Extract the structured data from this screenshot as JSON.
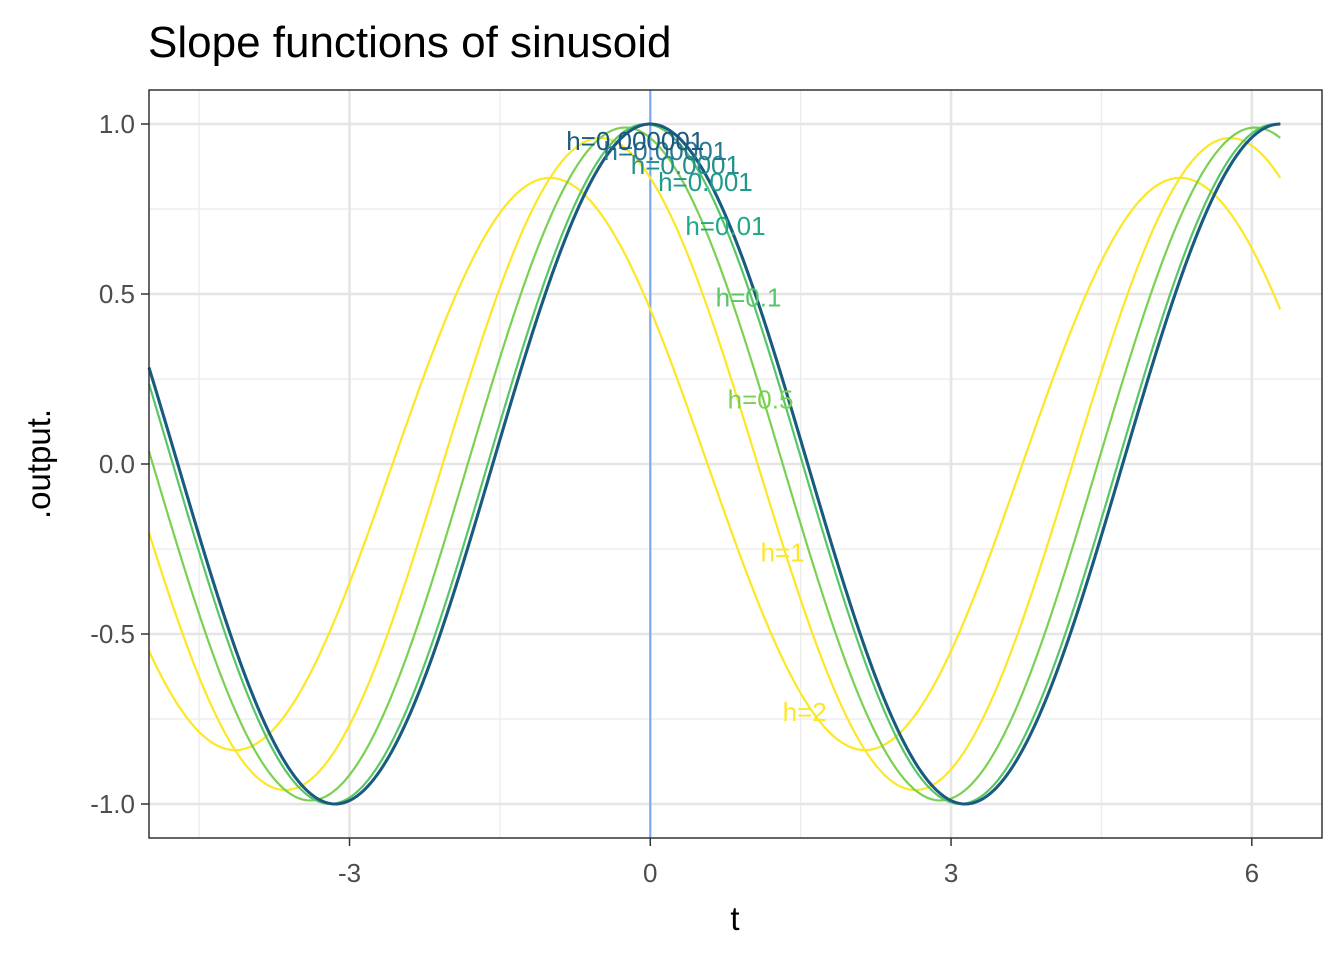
{
  "chart_data": {
    "type": "line",
    "title": "Slope functions of sinusoid",
    "xlabel": "t",
    "ylabel": ".output.",
    "xlim": [
      -5.0,
      6.7
    ],
    "ylim": [
      -1.1,
      1.1
    ],
    "x_ticks": [
      -3,
      0,
      3,
      6
    ],
    "x_tick_labels": [
      "-3",
      "0",
      "3",
      "6"
    ],
    "y_ticks": [
      -1.0,
      -0.5,
      0.0,
      0.5,
      1.0
    ],
    "y_tick_labels": [
      "-1.0",
      "-0.5",
      "0.0",
      "0.5",
      "1.0"
    ],
    "x_range": [
      -5,
      6.283
    ],
    "grid": true,
    "reference_line": {
      "x": 0,
      "color": "#7aa6f5"
    },
    "series": [
      {
        "name": "h=2",
        "h": 2,
        "color": "#FDE725",
        "label": {
          "x": 1.54,
          "y": -0.73
        }
      },
      {
        "name": "h=1",
        "h": 1,
        "color": "#FDE725",
        "label": {
          "x": 1.32,
          "y": -0.26
        }
      },
      {
        "name": "h=0.5",
        "h": 0.5,
        "color": "#7AD151",
        "label": {
          "x": 1.1,
          "y": 0.19
        }
      },
      {
        "name": "h=0.1",
        "h": 0.1,
        "color": "#56C667",
        "label": {
          "x": 0.98,
          "y": 0.49
        }
      },
      {
        "name": "h=0.01",
        "h": 0.01,
        "color": "#22A884",
        "label": {
          "x": 0.75,
          "y": 0.7
        }
      },
      {
        "name": "h=0.001",
        "h": 0.001,
        "color": "#1E9B8A",
        "label": {
          "x": 0.55,
          "y": 0.83
        }
      },
      {
        "name": "h=0.0001",
        "h": 0.0001,
        "color": "#21908C",
        "label": {
          "x": 0.35,
          "y": 0.88
        }
      },
      {
        "name": "h=0.00001",
        "h": 1e-05,
        "color": "#2A788E",
        "label": {
          "x": 0.15,
          "y": 0.92
        }
      },
      {
        "name": "h=0.000001",
        "h": 1e-06,
        "color": "#1B5A80",
        "label": {
          "x": -0.15,
          "y": 0.95
        }
      }
    ]
  }
}
